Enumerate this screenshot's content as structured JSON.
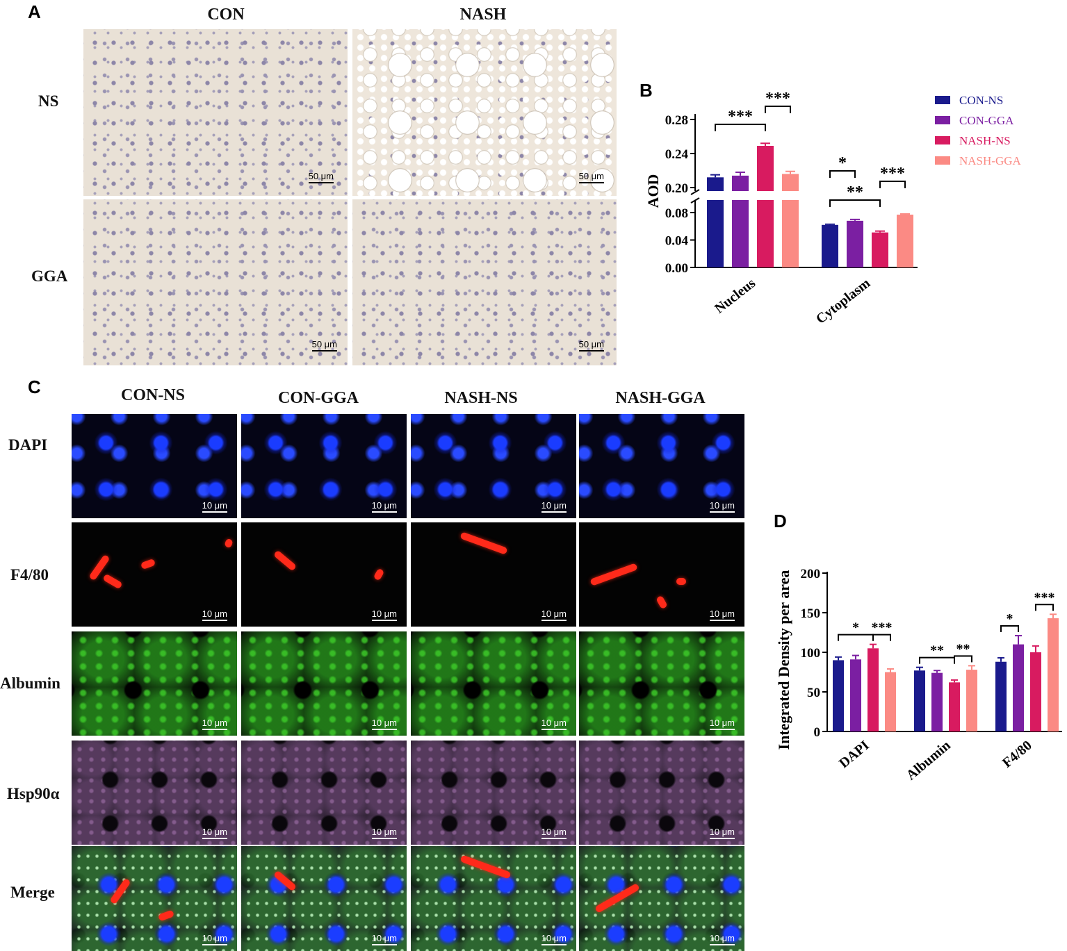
{
  "panel_a": {
    "letter": "A",
    "columns": [
      "CON",
      "NASH"
    ],
    "rows": [
      "NS",
      "GGA"
    ],
    "scale_bar": "50 μm"
  },
  "panel_b": {
    "letter": "B",
    "legend": [
      "CON-NS",
      "CON-GGA",
      "NASH-NS",
      "NASH-GGA"
    ],
    "colors": {
      "CON-NS": "#1a1a8c",
      "CON-GGA": "#7b1fa2",
      "NASH-NS": "#d81b60",
      "NASH-GGA": "#fb8a84"
    }
  },
  "panel_c": {
    "letter": "C",
    "columns": [
      "CON-NS",
      "CON-GGA",
      "NASH-NS",
      "NASH-GGA"
    ],
    "rows": [
      "DAPI",
      "F4/80",
      "Albumin",
      "Hsp90α",
      "Merge"
    ],
    "scale_bar": "10 μm"
  },
  "panel_d": {
    "letter": "D"
  },
  "chart_data": [
    {
      "type": "bar",
      "panel": "B",
      "categories": [
        "Nucleus",
        "Cytoplasm"
      ],
      "ylabel": "AOD",
      "ylim": [
        0,
        0.28
      ],
      "axis_break": [
        0.08,
        0.2
      ],
      "yticks_lower": [
        "0.00",
        "0.04",
        "0.08"
      ],
      "yticks_upper": [
        "0.20",
        "0.24",
        "0.28"
      ],
      "series": [
        {
          "name": "CON-NS",
          "values": [
            0.212,
            0.062
          ],
          "errors": [
            0.003,
            0.001
          ]
        },
        {
          "name": "CON-GGA",
          "values": [
            0.214,
            0.068
          ],
          "errors": [
            0.004,
            0.002
          ]
        },
        {
          "name": "NASH-NS",
          "values": [
            0.249,
            0.051
          ],
          "errors": [
            0.003,
            0.002
          ]
        },
        {
          "name": "NASH-GGA",
          "values": [
            0.216,
            0.077
          ],
          "errors": [
            0.003,
            0.001
          ]
        }
      ],
      "significance": [
        {
          "category": "Nucleus",
          "from": 0,
          "to": 2,
          "label": "***"
        },
        {
          "category": "Nucleus",
          "from": 2,
          "to": 3,
          "label": "***"
        },
        {
          "category": "Cytoplasm",
          "from": 0,
          "to": 1,
          "label": "*"
        },
        {
          "category": "Cytoplasm",
          "from": 0,
          "to": 2,
          "label": "**"
        },
        {
          "category": "Cytoplasm",
          "from": 2,
          "to": 3,
          "label": "***"
        }
      ]
    },
    {
      "type": "bar",
      "panel": "D",
      "categories": [
        "DAPI",
        "Albumin",
        "F4/80"
      ],
      "ylabel": "Integrated Density per area",
      "ylim": [
        0,
        200
      ],
      "yticks": [
        "0",
        "50",
        "100",
        "150",
        "200"
      ],
      "series": [
        {
          "name": "CON-NS",
          "values": [
            90,
            77,
            88
          ],
          "errors": [
            4,
            4,
            5
          ]
        },
        {
          "name": "CON-GGA",
          "values": [
            91,
            74,
            110
          ],
          "errors": [
            5,
            3,
            11
          ]
        },
        {
          "name": "NASH-NS",
          "values": [
            105,
            62,
            100
          ],
          "errors": [
            5,
            3,
            8
          ]
        },
        {
          "name": "NASH-GGA",
          "values": [
            75,
            78,
            143
          ],
          "errors": [
            4,
            5,
            5
          ]
        }
      ],
      "significance": [
        {
          "category": "DAPI",
          "from": 0,
          "to": 2,
          "label": "*"
        },
        {
          "category": "DAPI",
          "from": 2,
          "to": 3,
          "label": "***"
        },
        {
          "category": "Albumin",
          "from": 0,
          "to": 2,
          "label": "**"
        },
        {
          "category": "Albumin",
          "from": 2,
          "to": 3,
          "label": "**"
        },
        {
          "category": "F4/80",
          "from": 0,
          "to": 1,
          "label": "*"
        },
        {
          "category": "F4/80",
          "from": 2,
          "to": 3,
          "label": "***"
        }
      ]
    }
  ]
}
